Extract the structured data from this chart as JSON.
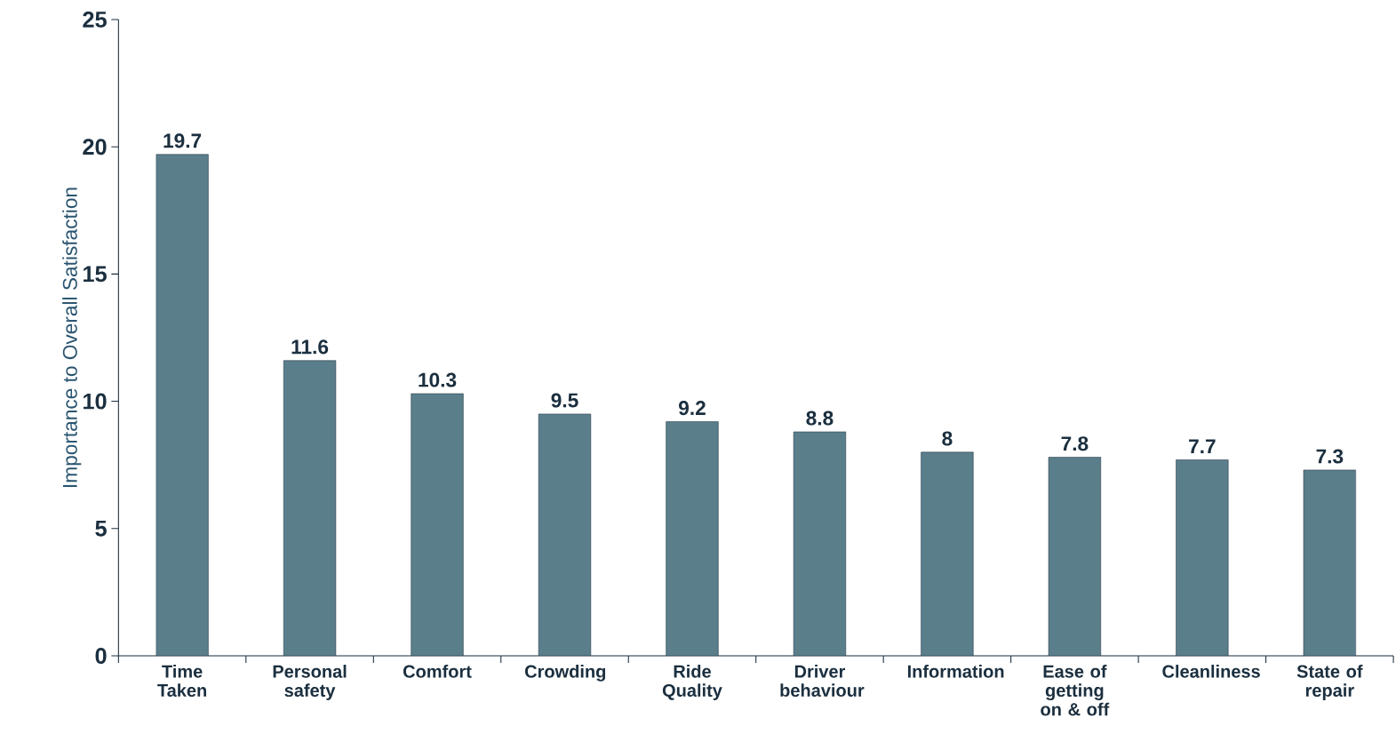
{
  "chart_data": {
    "type": "bar",
    "ylabel": "Importance to Overall Satisfaction",
    "categories": [
      "Time Taken",
      "Personal safety",
      "Comfort",
      "Crowding",
      "Ride Quality",
      "Driver behaviour",
      "Information",
      "Ease of getting on & off",
      "Cleanliness",
      "State of repair"
    ],
    "values": [
      19.7,
      11.6,
      10.3,
      9.5,
      9.2,
      8.8,
      8,
      7.8,
      7.7,
      7.3
    ],
    "color": "#5b7e8b",
    "ylim": [
      0,
      25
    ],
    "yticks": [
      0,
      5,
      10,
      15,
      20,
      25
    ],
    "data_labels": true,
    "grid": false
  }
}
